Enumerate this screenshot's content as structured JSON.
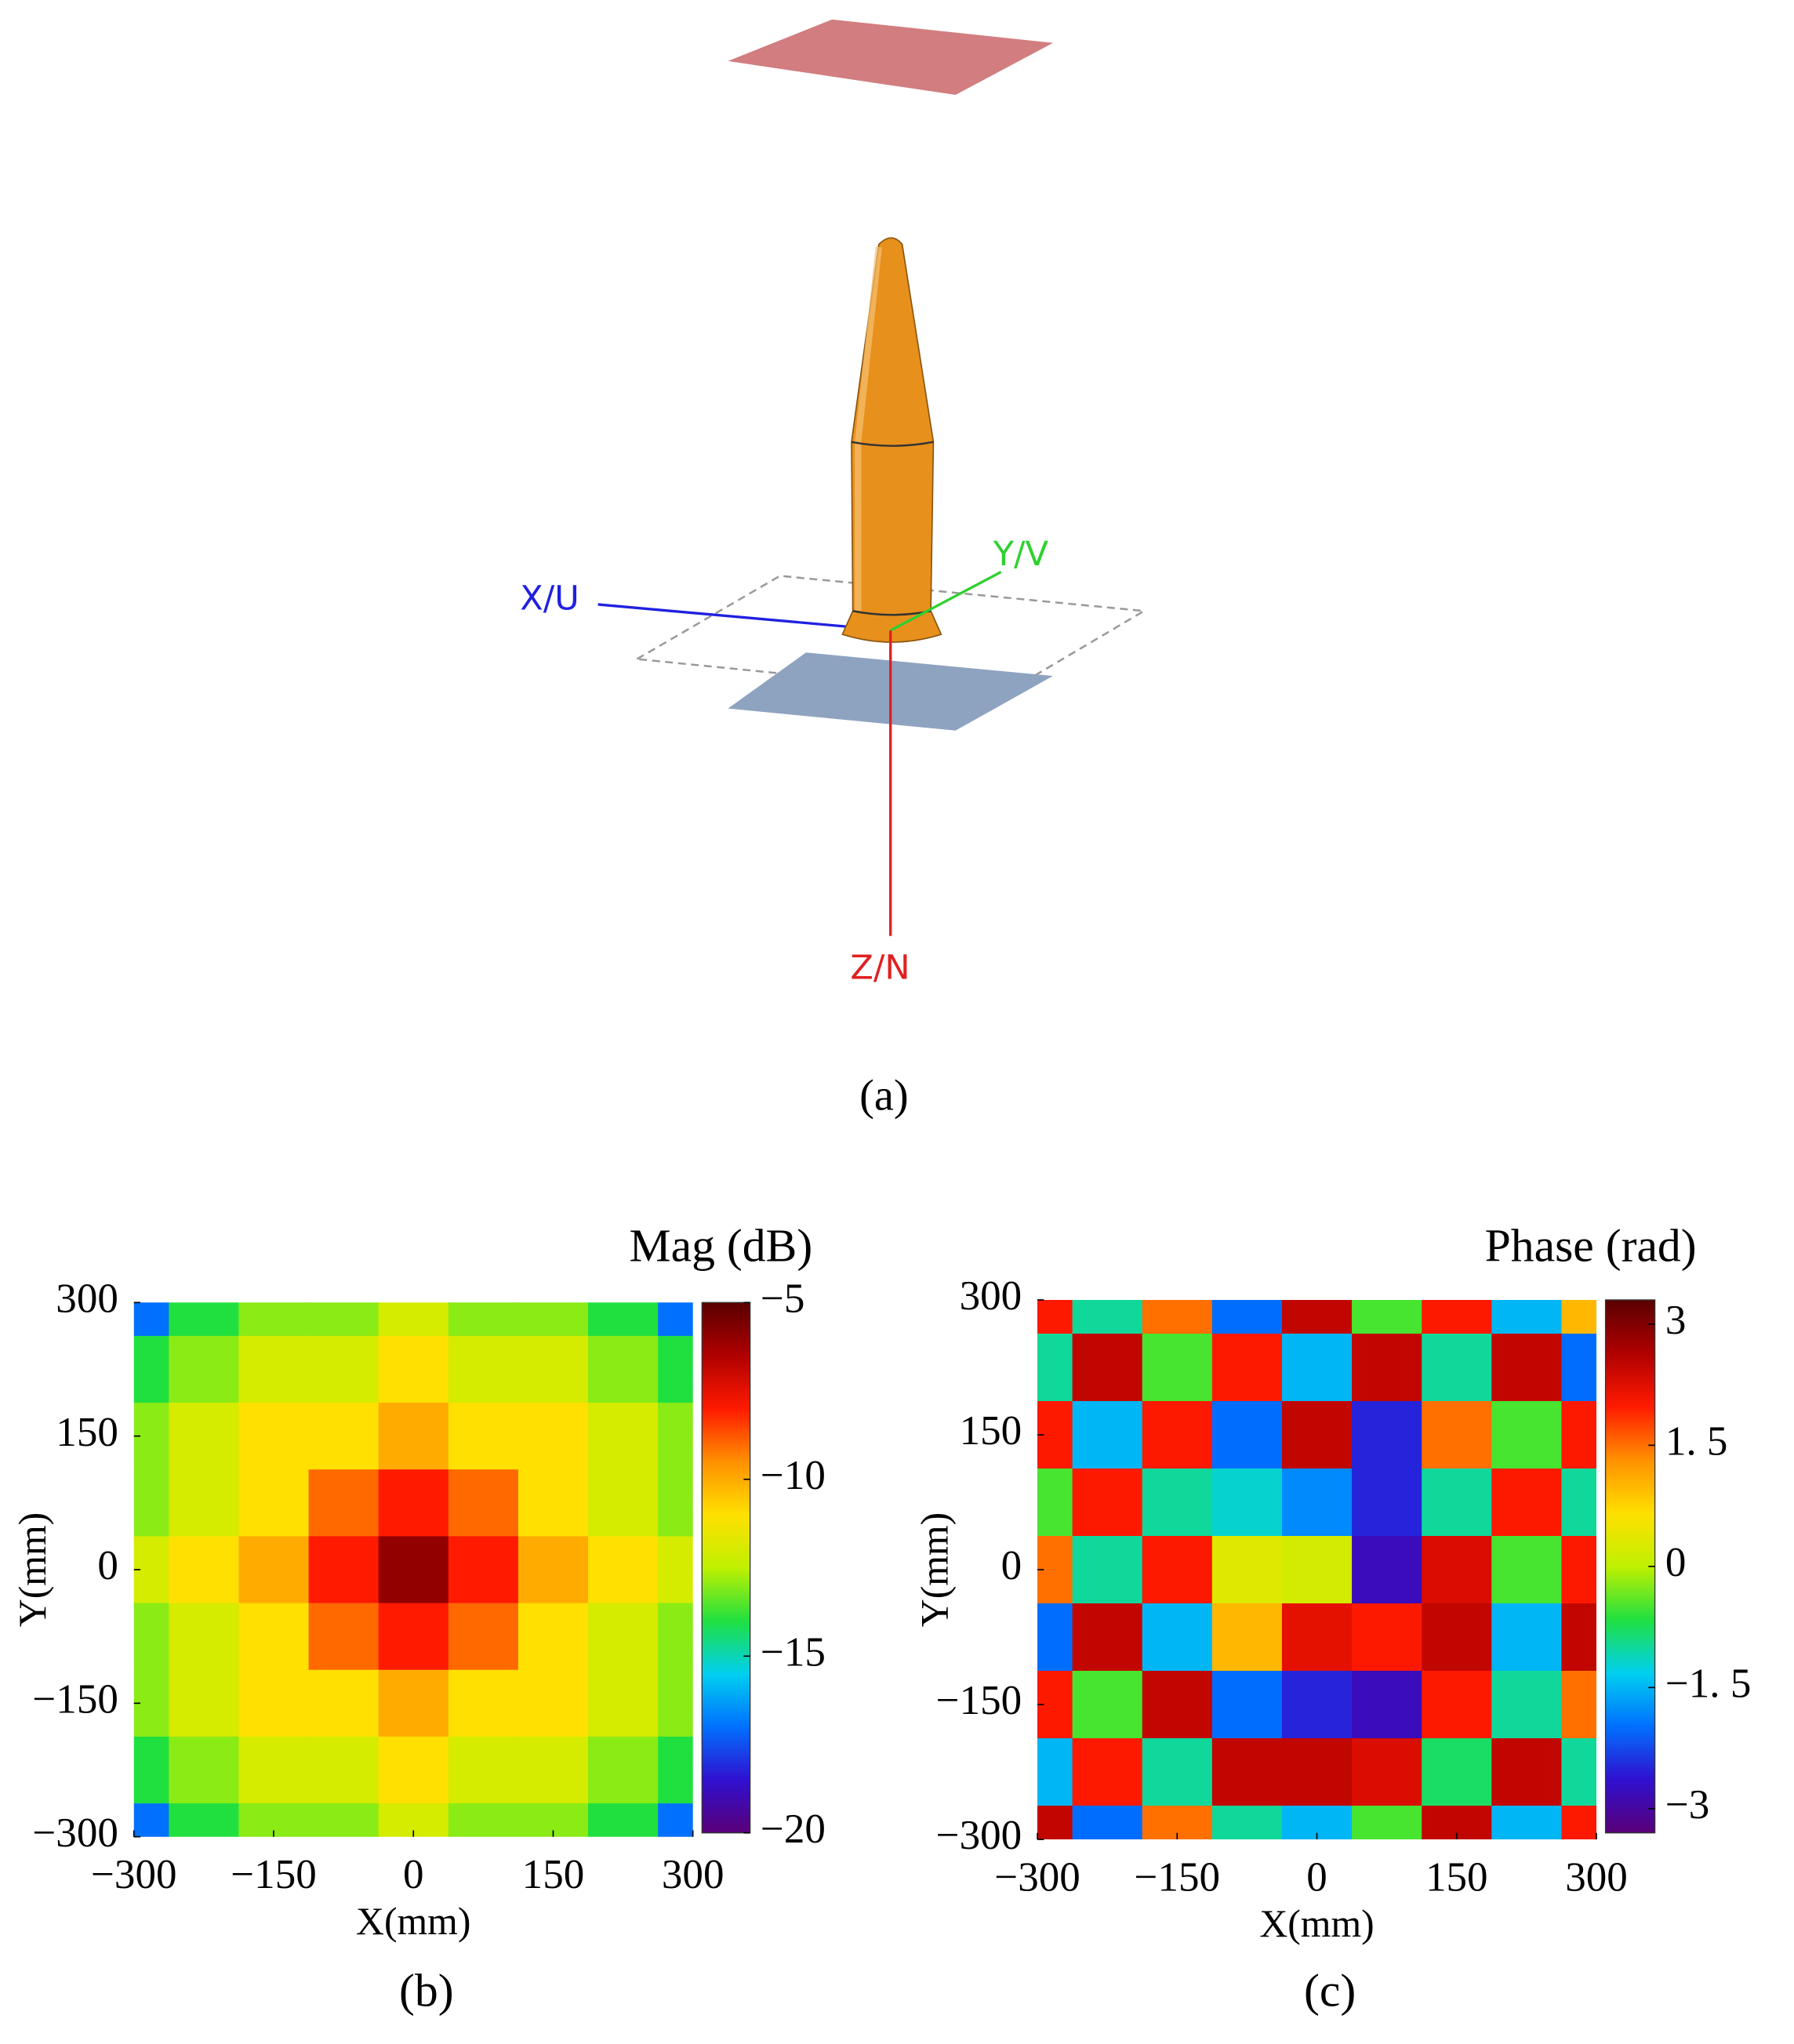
{
  "diagram": {
    "axis_labels": [
      "X/U",
      "Y/V",
      "Z/N"
    ],
    "caption": "(a)"
  },
  "chart_data": [
    {
      "type": "heatmap",
      "title": "Mag (dB)",
      "xlabel": "X(mm)",
      "ylabel": "Y(mm)",
      "caption": "(b)",
      "x": [
        -300,
        -225,
        -150,
        -75,
        0,
        75,
        150,
        225,
        300
      ],
      "y": [
        300,
        225,
        150,
        75,
        0,
        -75,
        -150,
        -225,
        -300
      ],
      "z": [
        [
          -17,
          -14,
          -13,
          -13,
          -12,
          -13,
          -13,
          -14,
          -17
        ],
        [
          -14,
          -13,
          -12,
          -12,
          -11,
          -12,
          -12,
          -13,
          -14
        ],
        [
          -13,
          -12,
          -11,
          -11,
          -10,
          -11,
          -11,
          -12,
          -13
        ],
        [
          -13,
          -12,
          -11,
          -9,
          -8,
          -9,
          -11,
          -12,
          -13
        ],
        [
          -12,
          -11,
          -10,
          -8,
          -6,
          -8,
          -10,
          -11,
          -12
        ],
        [
          -13,
          -12,
          -11,
          -9,
          -8,
          -9,
          -11,
          -12,
          -13
        ],
        [
          -13,
          -12,
          -11,
          -11,
          -10,
          -11,
          -11,
          -12,
          -13
        ],
        [
          -14,
          -13,
          -12,
          -12,
          -11,
          -12,
          -12,
          -13,
          -14
        ],
        [
          -17,
          -14,
          -13,
          -13,
          -12,
          -13,
          -13,
          -14,
          -17
        ]
      ],
      "xlim": [
        -300,
        300
      ],
      "ylim": [
        -300,
        300
      ],
      "xticks": [
        {
          "value": -300,
          "label": "−300"
        },
        {
          "value": -150,
          "label": "−150"
        },
        0,
        150,
        300
      ],
      "yticks": [
        {
          "value": -300,
          "label": "−300"
        },
        {
          "value": -150,
          "label": "−150"
        },
        0,
        150,
        300
      ],
      "clim": [
        -20,
        -5
      ],
      "cticks": [
        {
          "value": -5,
          "label": "−5"
        },
        {
          "value": -10,
          "label": "−10"
        },
        {
          "value": -15,
          "label": "−15"
        },
        {
          "value": -20,
          "label": "−20"
        }
      ],
      "colormap": [
        "#5a0078",
        "#3010d0",
        "#0070ff",
        "#00d0f0",
        "#20e040",
        "#c0f000",
        "#ffe000",
        "#ff9000",
        "#ff1a00",
        "#b00000",
        "#5a0000"
      ]
    },
    {
      "type": "heatmap",
      "title": "Phase (rad)",
      "xlabel": "X(mm)",
      "ylabel": "Y(mm)",
      "caption": "(c)",
      "x": [
        -300,
        -225,
        -150,
        -75,
        0,
        75,
        150,
        225,
        300
      ],
      "y": [
        300,
        225,
        150,
        75,
        0,
        -75,
        -150,
        -225,
        -300
      ],
      "z": [
        [
          2,
          -1,
          1.5,
          -2,
          2.5,
          -0.5,
          2,
          -1.5,
          1
        ],
        [
          -1,
          2.5,
          -0.5,
          2,
          -1.5,
          2.5,
          -1,
          2.5,
          -2
        ],
        [
          2,
          -1.5,
          2,
          -2,
          2.5,
          -2.5,
          1.5,
          -0.5,
          2
        ],
        [
          -0.5,
          2,
          -1,
          -1.2,
          -1.8,
          -2.5,
          -1,
          2,
          -1
        ],
        [
          1.5,
          -1,
          2,
          0.3,
          0.2,
          -2.8,
          2.3,
          -0.5,
          2
        ],
        [
          -2,
          2.5,
          -1.5,
          1,
          2.2,
          2,
          2.5,
          -1.5,
          2.5
        ],
        [
          2,
          -0.5,
          2.5,
          -2,
          -2.5,
          -2.8,
          2,
          -1,
          1.5
        ],
        [
          -1.5,
          2,
          -1,
          2.5,
          2.5,
          2.3,
          -0.8,
          2.5,
          -1
        ],
        [
          2.5,
          -2,
          1.5,
          -1,
          -1.5,
          -0.5,
          2.5,
          -1.5,
          2
        ]
      ],
      "xlim": [
        -300,
        300
      ],
      "ylim": [
        -300,
        300
      ],
      "xticks": [
        {
          "value": -300,
          "label": "−300"
        },
        {
          "value": -150,
          "label": "−150"
        },
        0,
        150,
        300
      ],
      "yticks": [
        {
          "value": -300,
          "label": "−300"
        },
        {
          "value": -150,
          "label": "−150"
        },
        0,
        150,
        300
      ],
      "clim": [
        -3.3,
        3.3
      ],
      "cticks": [
        3,
        {
          "value": 1.5,
          "label": "1. 5"
        },
        0,
        {
          "value": -1.5,
          "label": "−1. 5"
        },
        {
          "value": -3,
          "label": "−3"
        }
      ],
      "colormap": [
        "#5a0078",
        "#3010d0",
        "#0070ff",
        "#00d0f0",
        "#20e040",
        "#c0f000",
        "#ffe000",
        "#ff9000",
        "#ff1a00",
        "#b00000",
        "#5a0000"
      ]
    }
  ]
}
